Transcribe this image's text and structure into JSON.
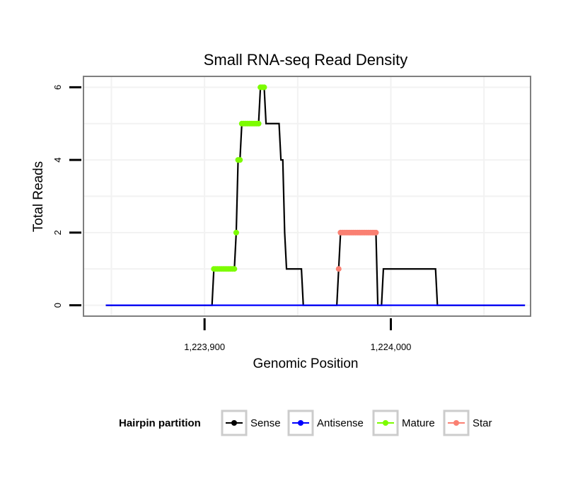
{
  "chart_data": {
    "type": "line",
    "title": "Small RNA-seq Read Density",
    "xlabel": "Genomic Position",
    "ylabel": "Total Reads",
    "xlim": [
      1223835,
      1224075
    ],
    "ylim": [
      -0.3,
      6.3
    ],
    "x_ticks": [
      {
        "value": 1223900,
        "label": "1,223,900"
      },
      {
        "value": 1224000,
        "label": "1,224,000"
      }
    ],
    "y_ticks": [
      {
        "value": 0,
        "label": "0"
      },
      {
        "value": 2,
        "label": "2"
      },
      {
        "value": 4,
        "label": "4"
      },
      {
        "value": 6,
        "label": "6"
      }
    ],
    "grid": true,
    "legend": {
      "title": "Hairpin partition",
      "position": "bottom",
      "entries": [
        {
          "name": "Sense",
          "color": "#000000"
        },
        {
          "name": "Antisense",
          "color": "#0000ff"
        },
        {
          "name": "Mature",
          "color": "#7cfc00"
        },
        {
          "name": "Star",
          "color": "#fa8072"
        }
      ]
    },
    "series": [
      {
        "name": "Sense",
        "color": "#000000",
        "kind": "line",
        "points": [
          [
            1223847,
            0
          ],
          [
            1223904,
            0
          ],
          [
            1223905,
            1
          ],
          [
            1223916,
            1
          ],
          [
            1223917,
            2
          ],
          [
            1223918,
            4
          ],
          [
            1223919,
            4
          ],
          [
            1223920,
            5
          ],
          [
            1223929,
            5
          ],
          [
            1223930,
            6
          ],
          [
            1223932,
            6
          ],
          [
            1223933,
            5
          ],
          [
            1223940,
            5
          ],
          [
            1223941,
            4
          ],
          [
            1223942,
            4
          ],
          [
            1223943,
            2
          ],
          [
            1223944,
            1
          ],
          [
            1223952,
            1
          ],
          [
            1223953,
            0
          ],
          [
            1223971,
            0
          ],
          [
            1223972,
            1
          ],
          [
            1223973,
            2
          ],
          [
            1223992,
            2
          ],
          [
            1223993,
            0
          ],
          [
            1223995,
            0
          ],
          [
            1223996,
            1
          ],
          [
            1224024,
            1
          ],
          [
            1224025,
            0
          ],
          [
            1224072,
            0
          ]
        ]
      },
      {
        "name": "Antisense",
        "color": "#0000ff",
        "kind": "line",
        "points": [
          [
            1223847,
            0
          ],
          [
            1224072,
            0
          ]
        ]
      },
      {
        "name": "Mature",
        "color": "#7cfc00",
        "kind": "points",
        "points": [
          [
            1223905,
            1
          ],
          [
            1223906,
            1
          ],
          [
            1223907,
            1
          ],
          [
            1223908,
            1
          ],
          [
            1223909,
            1
          ],
          [
            1223910,
            1
          ],
          [
            1223911,
            1
          ],
          [
            1223912,
            1
          ],
          [
            1223913,
            1
          ],
          [
            1223914,
            1
          ],
          [
            1223915,
            1
          ],
          [
            1223916,
            1
          ],
          [
            1223917,
            2
          ],
          [
            1223918,
            4
          ],
          [
            1223919,
            4
          ],
          [
            1223920,
            5
          ],
          [
            1223921,
            5
          ],
          [
            1223922,
            5
          ],
          [
            1223923,
            5
          ],
          [
            1223924,
            5
          ],
          [
            1223925,
            5
          ],
          [
            1223926,
            5
          ],
          [
            1223927,
            5
          ],
          [
            1223928,
            5
          ],
          [
            1223929,
            5
          ],
          [
            1223930,
            6
          ],
          [
            1223931,
            6
          ],
          [
            1223932,
            6
          ]
        ]
      },
      {
        "name": "Star",
        "color": "#fa8072",
        "kind": "points",
        "points": [
          [
            1223972,
            1
          ],
          [
            1223973,
            2
          ],
          [
            1223974,
            2
          ],
          [
            1223975,
            2
          ],
          [
            1223976,
            2
          ],
          [
            1223977,
            2
          ],
          [
            1223978,
            2
          ],
          [
            1223979,
            2
          ],
          [
            1223980,
            2
          ],
          [
            1223981,
            2
          ],
          [
            1223982,
            2
          ],
          [
            1223983,
            2
          ],
          [
            1223984,
            2
          ],
          [
            1223985,
            2
          ],
          [
            1223986,
            2
          ],
          [
            1223987,
            2
          ],
          [
            1223988,
            2
          ],
          [
            1223989,
            2
          ],
          [
            1223990,
            2
          ],
          [
            1223991,
            2
          ],
          [
            1223992,
            2
          ]
        ]
      }
    ]
  }
}
